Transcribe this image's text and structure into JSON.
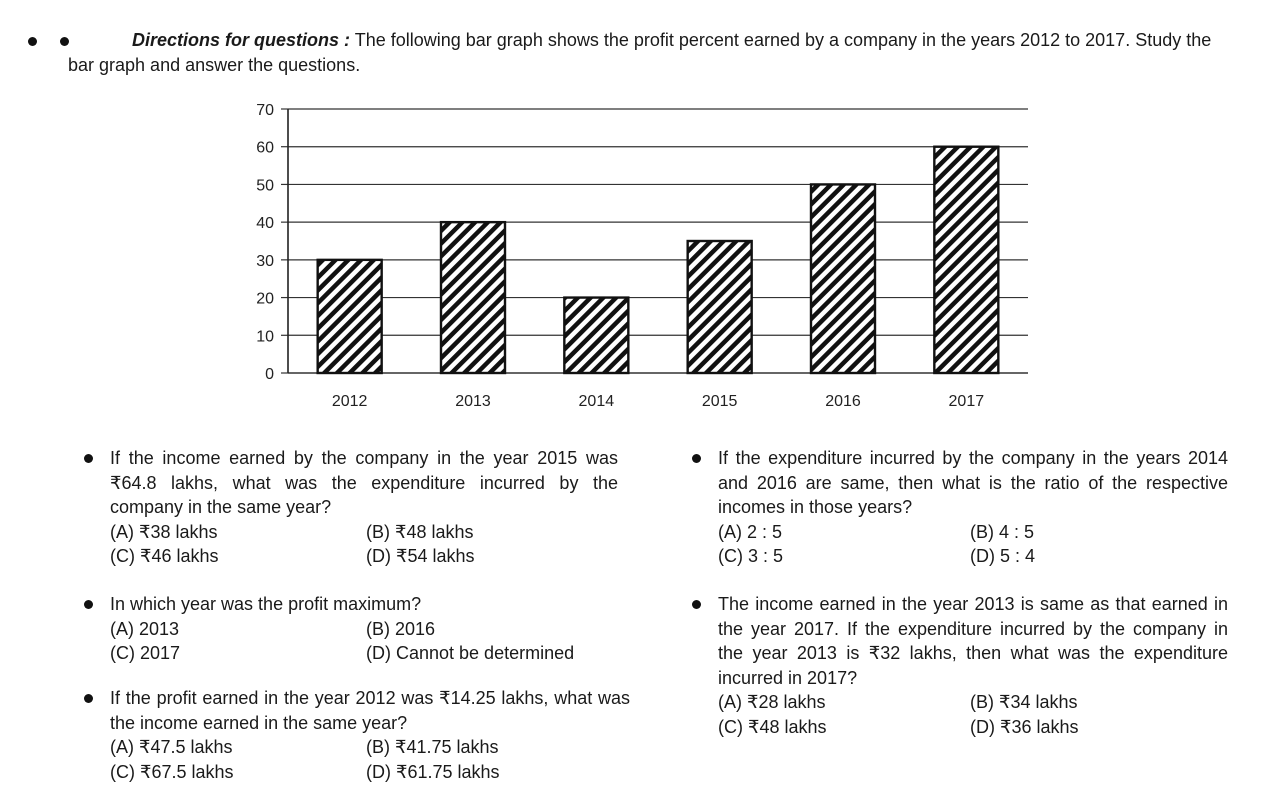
{
  "directions": {
    "label": "Directions for questions :",
    "text": "The following bar graph shows the profit percent earned by a company in the years 2012 to 2017. Study the bar graph and answer the questions."
  },
  "chart_data": {
    "type": "bar",
    "title": "",
    "xlabel": "",
    "ylabel": "",
    "categories": [
      "2012",
      "2013",
      "2014",
      "2015",
      "2016",
      "2017"
    ],
    "values": [
      30,
      40,
      20,
      35,
      50,
      60
    ],
    "yticks": [
      "0",
      "10",
      "20",
      "30",
      "40",
      "50",
      "60",
      "70"
    ],
    "ylim": [
      0,
      70
    ],
    "grid": true,
    "bar_fill": "diagonal hatch",
    "colors": {
      "bar_stroke": "#111111",
      "grid": "#333333"
    }
  },
  "questions": [
    {
      "text": "If the income earned by the company in the year 2015 was ₹64.8 lakhs, what was the expenditure incurred by the company in the same year?",
      "options": [
        "(A) ₹38 lakhs",
        "(B) ₹48 lakhs",
        "(C) ₹46 lakhs",
        "(D) ₹54 lakhs"
      ]
    },
    {
      "text": "In which year was the profit maximum?",
      "options": [
        "(A) 2013",
        "(B) 2016",
        "(C) 2017",
        "(D) Cannot be determined"
      ]
    },
    {
      "text": "If the profit earned in the year 2012 was ₹14.25 lakhs, what was the income earned in the same year?",
      "options": [
        "(A) ₹47.5 lakhs",
        "(B) ₹41.75 lakhs",
        "(C) ₹67.5 lakhs",
        "(D) ₹61.75 lakhs"
      ]
    },
    {
      "text": "If the expenditure incurred by the company in the years 2014 and 2016 are same, then what is the ratio of the respective incomes in those years?",
      "options": [
        "(A) 2 : 5",
        "(B) 4 : 5",
        "(C) 3 : 5",
        "(D) 5 : 4"
      ]
    },
    {
      "text": "The income earned in the year 2013 is same as that earned in the year 2017. If the expenditure incurred by the company in the year 2013 is ₹32 lakhs, then what was the expenditure incurred in 2017?",
      "options": [
        "(A) ₹28 lakhs",
        "(B) ₹34 lakhs",
        "(C) ₹48 lakhs",
        "(D) ₹36 lakhs"
      ]
    }
  ]
}
